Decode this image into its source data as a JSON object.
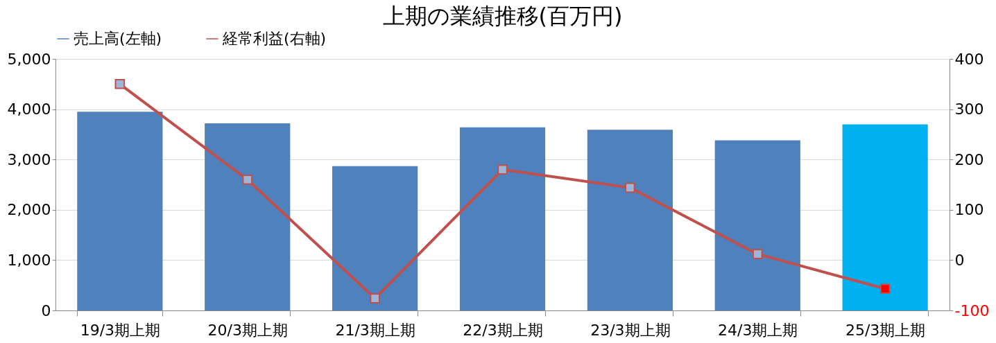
{
  "chart_data": {
    "type": "bar",
    "title": "上期の業績推移(百万円)",
    "categories": [
      "19/3期上期",
      "20/3期上期",
      "21/3期上期",
      "22/3期上期",
      "23/3期上期",
      "24/3期上期",
      "25/3期上期"
    ],
    "series": [
      {
        "name": "売上高(左軸)",
        "color": "#4f81bd",
        "colors": [
          "#4f81bd",
          "#4f81bd",
          "#4f81bd",
          "#4f81bd",
          "#4f81bd",
          "#4f81bd",
          "#00b0f0"
        ],
        "values": [
          3950,
          3720,
          2870,
          3640,
          3590,
          3380,
          3700
        ]
      },
      {
        "name": "経常利益(右軸)",
        "type": "line",
        "axis": "y2",
        "color": "#c0504d",
        "colors": [
          "#9db6d8",
          "#9db6d8",
          "#9db6d8",
          "#9db6d8",
          "#9db6d8",
          "#9db6d8",
          "#ff0000"
        ],
        "marker": "square",
        "values": [
          350,
          160,
          -76,
          180,
          144,
          12,
          -57
        ]
      }
    ],
    "ylim": [
      0,
      5000
    ],
    "yticks": [
      0,
      {
        "value": 1000,
        "label": "1,000"
      },
      {
        "value": 2000,
        "label": "2,000"
      },
      {
        "value": 3000,
        "label": "3,000"
      },
      {
        "value": 4000,
        "label": "4,000"
      },
      {
        "value": 5000,
        "label": "5,000"
      }
    ],
    "y2lim": [
      -100,
      400
    ],
    "y2ticks": [
      -100,
      0,
      100,
      200,
      300,
      400
    ],
    "grid": "y",
    "legend": "top"
  }
}
